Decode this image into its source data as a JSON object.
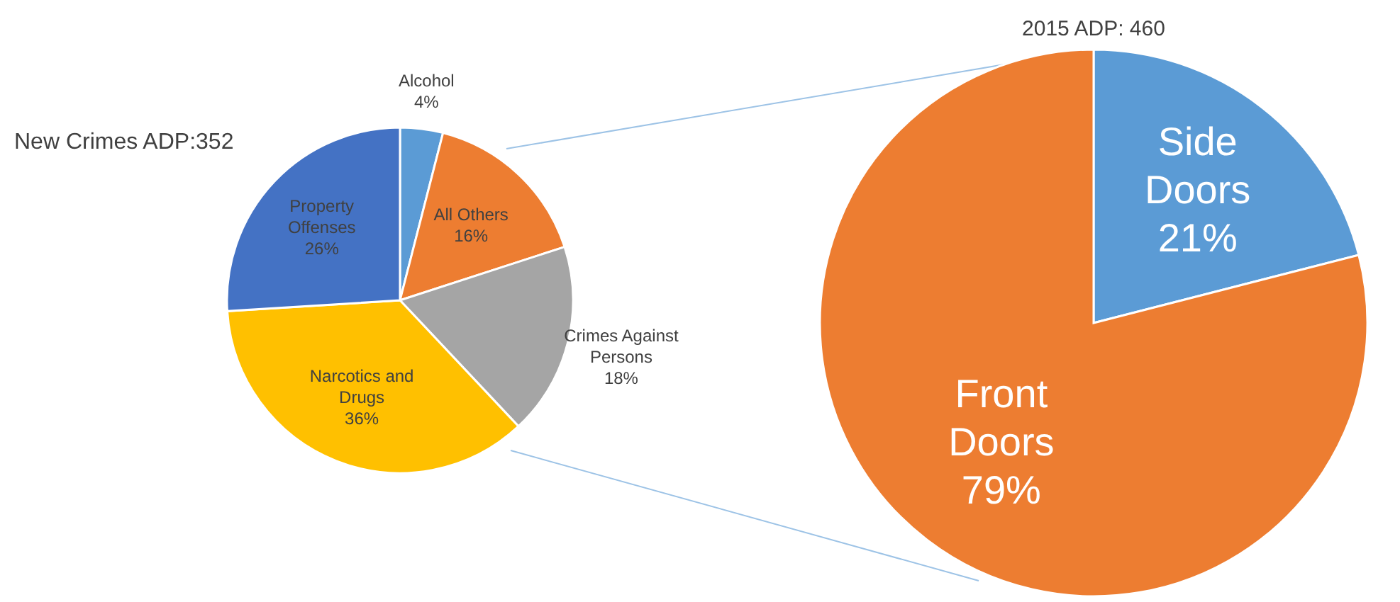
{
  "chart_data": [
    {
      "type": "pie",
      "title": "New Crimes ADP:352",
      "categories": [
        "Alcohol",
        "All Others",
        "Crimes Against Persons",
        "Narcotics and Drugs",
        "Property Offenses"
      ],
      "values": [
        4,
        16,
        18,
        36,
        26
      ],
      "colors": [
        "#5b9bd5",
        "#ed7d31",
        "#a5a5a5",
        "#ffc000",
        "#4472c4"
      ],
      "data_labels": true,
      "value_labels": [
        "4%",
        "16%",
        "18%",
        "36%",
        "26%"
      ]
    },
    {
      "type": "pie",
      "title": "2015 ADP: 460",
      "categories": [
        "Side Doors",
        "Front Doors"
      ],
      "values": [
        21,
        79
      ],
      "colors": [
        "#5b9bd5",
        "#ed7d31"
      ],
      "data_labels": true,
      "value_labels": [
        "21%",
        "79%"
      ]
    }
  ]
}
